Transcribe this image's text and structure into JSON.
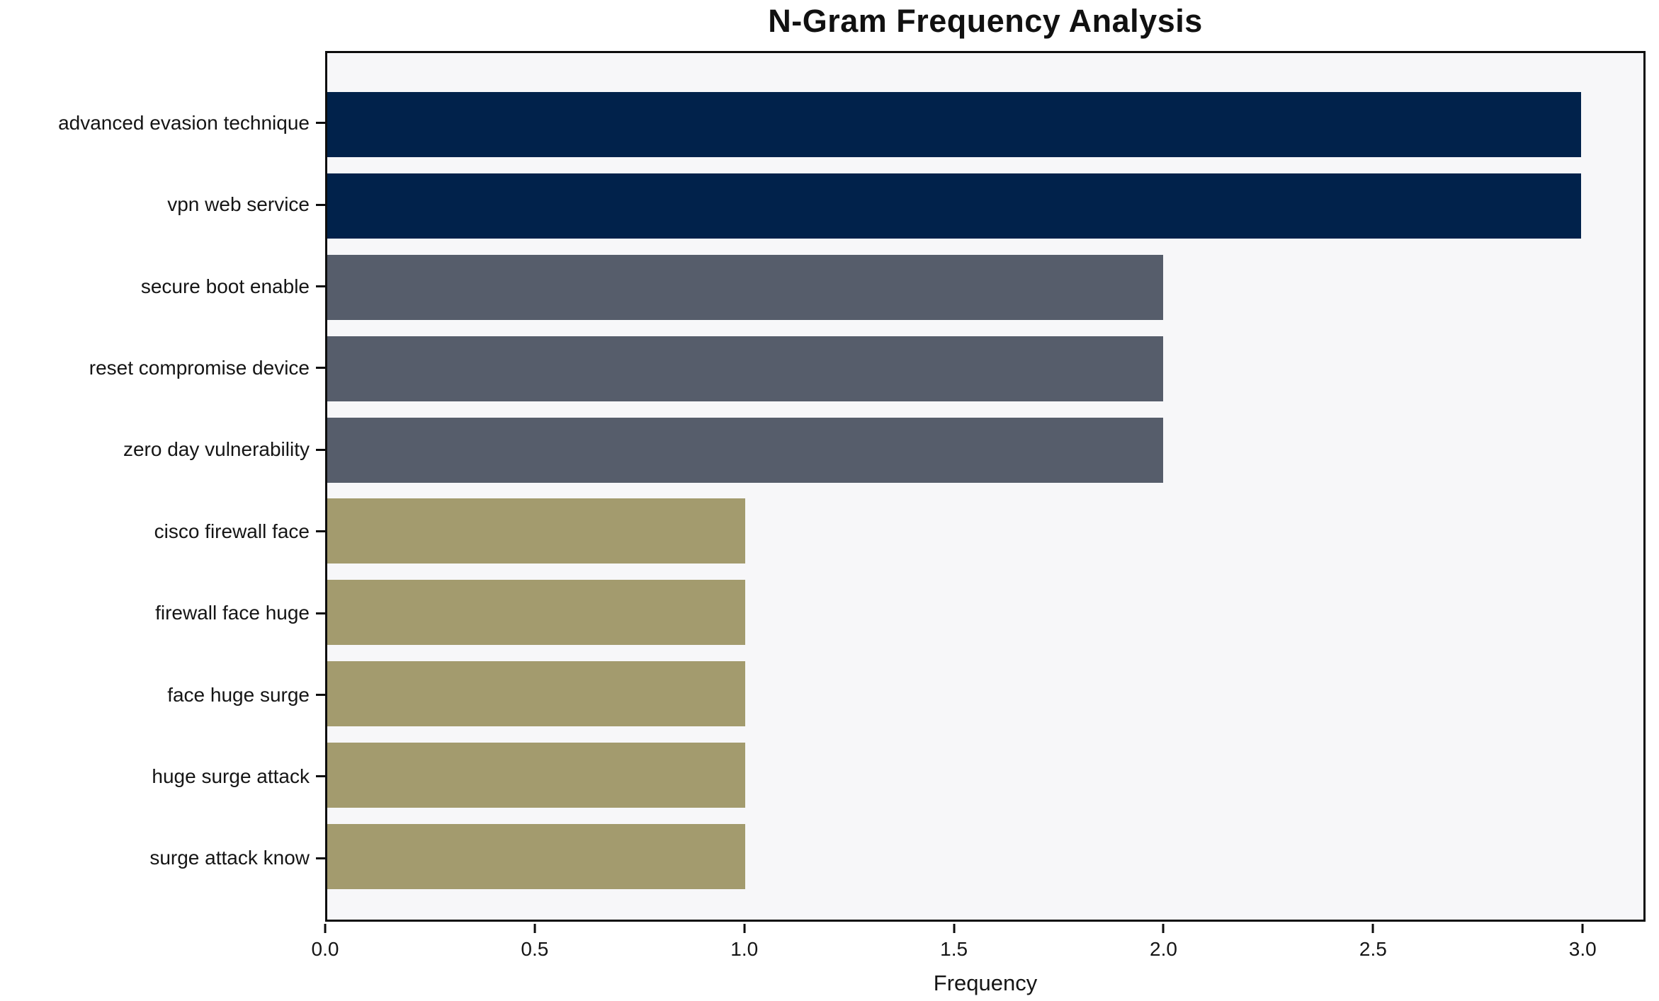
{
  "chart_data": {
    "type": "bar",
    "orientation": "horizontal",
    "title": "N-Gram Frequency Analysis",
    "xlabel": "Frequency",
    "ylabel": "",
    "categories": [
      "advanced evasion technique",
      "vpn web service",
      "secure boot enable",
      "reset compromise device",
      "zero day vulnerability",
      "cisco firewall face",
      "firewall face huge",
      "face huge surge",
      "huge surge attack",
      "surge attack know"
    ],
    "values": [
      3,
      3,
      2,
      2,
      2,
      1,
      1,
      1,
      1,
      1
    ],
    "bar_colors": [
      "#01224b",
      "#01224b",
      "#565d6b",
      "#565d6b",
      "#565d6b",
      "#a39b6e",
      "#a39b6e",
      "#a39b6e",
      "#a39b6e",
      "#a39b6e"
    ],
    "xlim": [
      0,
      3.15
    ],
    "xticks": [
      0.0,
      0.5,
      1.0,
      1.5,
      2.0,
      2.5,
      3.0
    ],
    "xtick_labels": [
      "0.0",
      "0.5",
      "1.0",
      "1.5",
      "2.0",
      "2.5",
      "3.0"
    ],
    "grid": false,
    "legend": null,
    "colors": {
      "plot_background": "#f7f7f9",
      "figure_background": "#ffffff",
      "spine": "#0d0d0d",
      "text": "#151515"
    }
  }
}
